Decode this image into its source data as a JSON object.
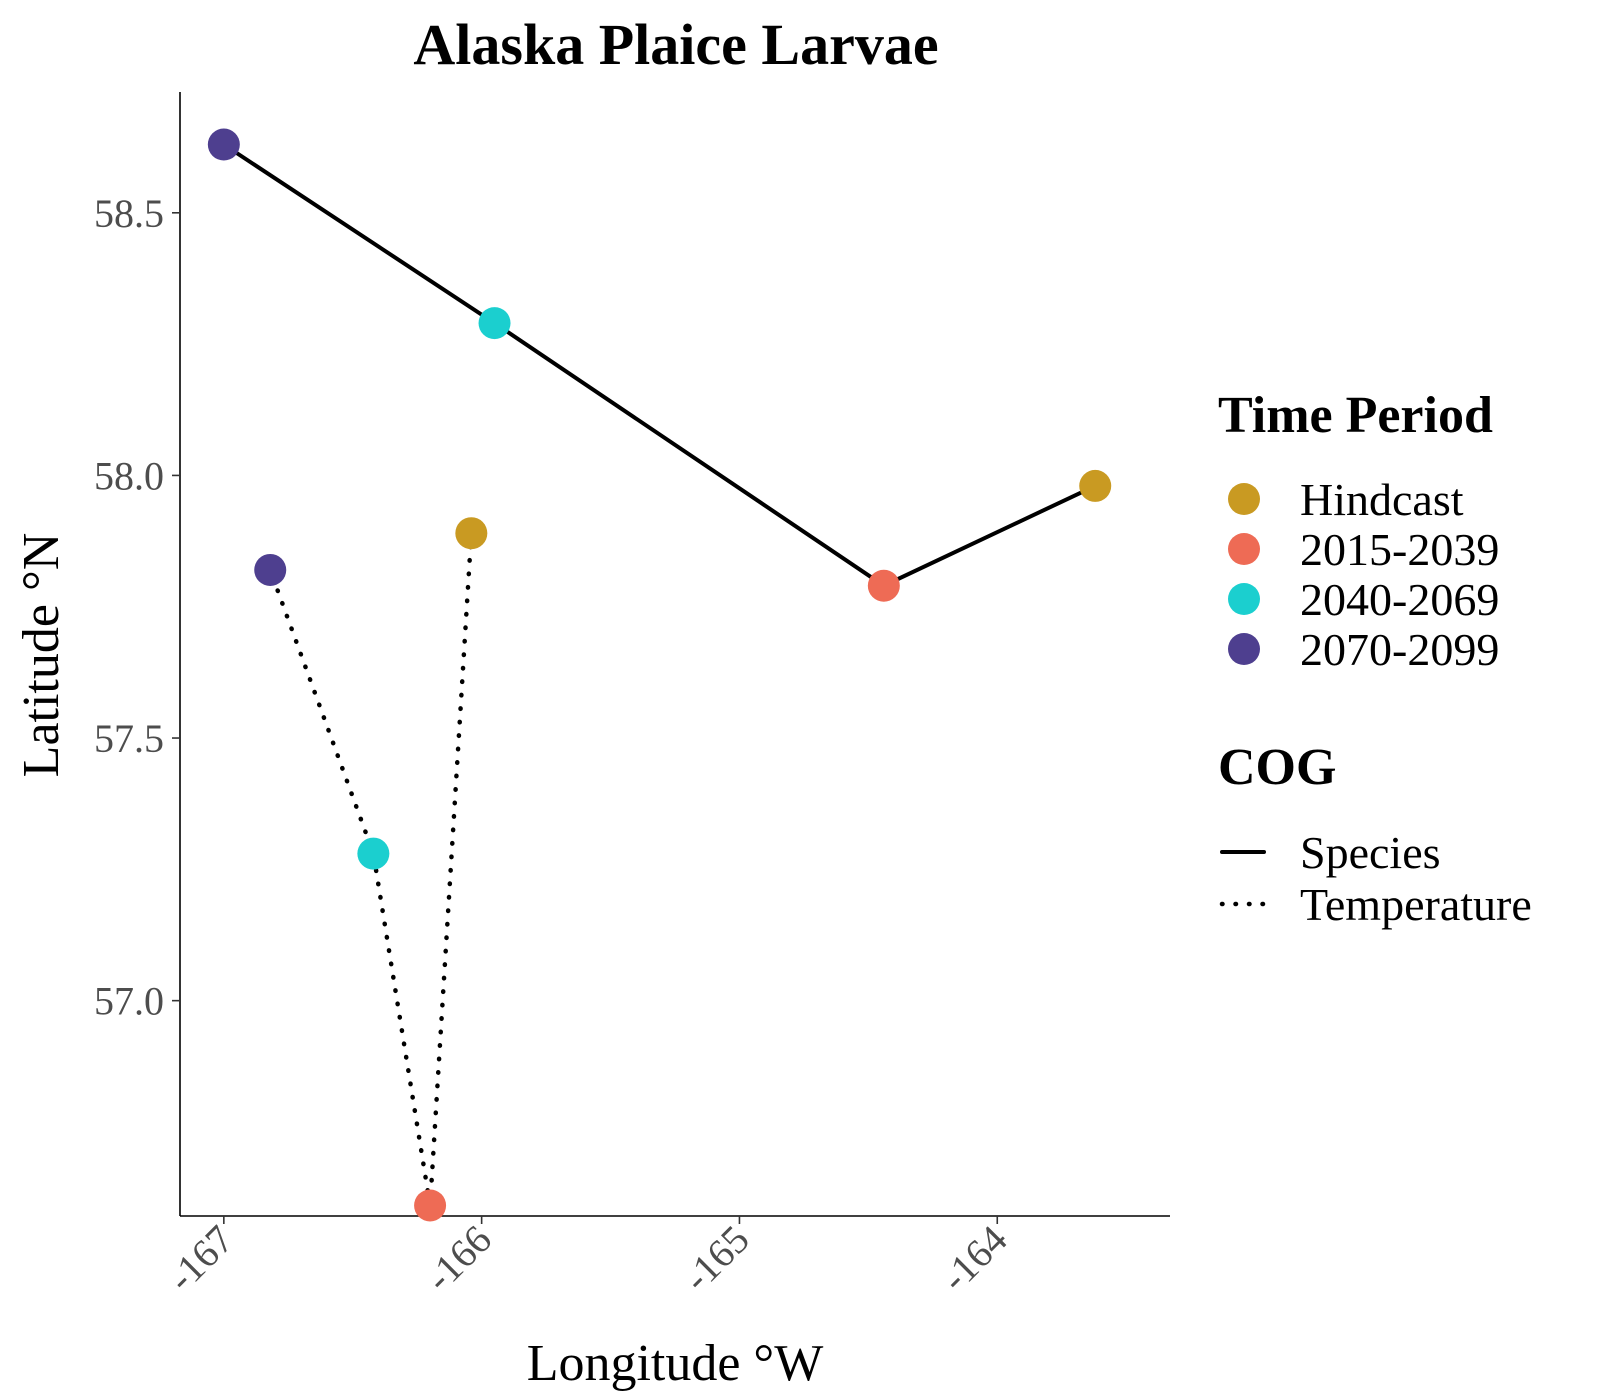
{
  "chart_data": {
    "type": "line",
    "title": "Alaska Plaice Larvae",
    "xlabel": "Longitude °W",
    "ylabel": "Latitude °N",
    "xlim": [
      -167.17,
      -163.33
    ],
    "ylim": [
      56.59,
      58.73
    ],
    "x_ticks": [
      -167,
      -166,
      -165,
      -164
    ],
    "x_tick_labels": [
      "-167",
      "-166",
      "-165",
      "-164"
    ],
    "y_ticks": [
      57.0,
      57.5,
      58.0,
      58.5
    ],
    "y_tick_labels": [
      "57.0",
      "57.5",
      "58.0",
      "58.5"
    ],
    "grid": false,
    "legend_position": "right",
    "time_periods": [
      {
        "label": "Hindcast",
        "color": "#C99A22"
      },
      {
        "label": "2015-2039",
        "color": "#EE6B55"
      },
      {
        "label": "2040-2069",
        "color": "#1BCFCF"
      },
      {
        "label": "2070-2099",
        "color": "#4E3F8F"
      }
    ],
    "cog_title": "COG",
    "time_period_title": "Time Period",
    "series": [
      {
        "name": "Species",
        "line_style": "solid",
        "points": [
          {
            "period": "Hindcast",
            "x": -163.62,
            "y": 57.98
          },
          {
            "period": "2015-2039",
            "x": -164.44,
            "y": 57.79
          },
          {
            "period": "2040-2069",
            "x": -165.95,
            "y": 58.29
          },
          {
            "period": "2070-2099",
            "x": -167.0,
            "y": 58.63
          }
        ]
      },
      {
        "name": "Temperature",
        "line_style": "dotted",
        "points": [
          {
            "period": "Hindcast",
            "x": -166.04,
            "y": 57.89
          },
          {
            "period": "2015-2039",
            "x": -166.2,
            "y": 56.61
          },
          {
            "period": "2040-2069",
            "x": -166.42,
            "y": 57.28
          },
          {
            "period": "2070-2099",
            "x": -166.82,
            "y": 57.82
          }
        ]
      }
    ]
  }
}
